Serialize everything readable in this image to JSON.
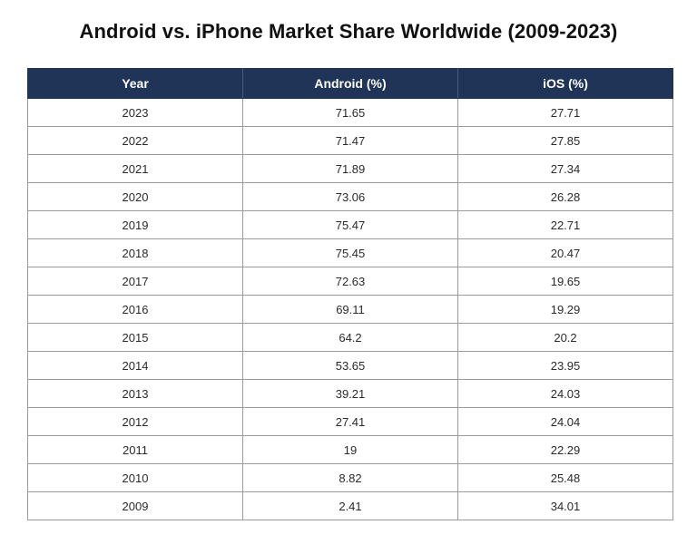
{
  "title": "Android vs. iPhone Market Share Worldwide (2009-2023)",
  "colors": {
    "header_background": "#1f3457",
    "header_text": "#ffffff",
    "grid_lines": "#9a9a9a"
  },
  "chart_data": {
    "type": "table",
    "title": "Android vs. iPhone Market Share Worldwide (2009-2023)",
    "columns": [
      "Year",
      "Android (%)",
      "iOS (%)"
    ],
    "rows": [
      [
        "2023",
        "71.65",
        "27.71"
      ],
      [
        "2022",
        "71.47",
        "27.85"
      ],
      [
        "2021",
        "71.89",
        "27.34"
      ],
      [
        "2020",
        "73.06",
        "26.28"
      ],
      [
        "2019",
        "75.47",
        "22.71"
      ],
      [
        "2018",
        "75.45",
        "20.47"
      ],
      [
        "2017",
        "72.63",
        "19.65"
      ],
      [
        "2016",
        "69.11",
        "19.29"
      ],
      [
        "2015",
        "64.2",
        "20.2"
      ],
      [
        "2014",
        "53.65",
        "23.95"
      ],
      [
        "2013",
        "39.21",
        "24.03"
      ],
      [
        "2012",
        "27.41",
        "24.04"
      ],
      [
        "2011",
        "19",
        "22.29"
      ],
      [
        "2010",
        "8.82",
        "25.48"
      ],
      [
        "2009",
        "2.41",
        "34.01"
      ]
    ]
  }
}
